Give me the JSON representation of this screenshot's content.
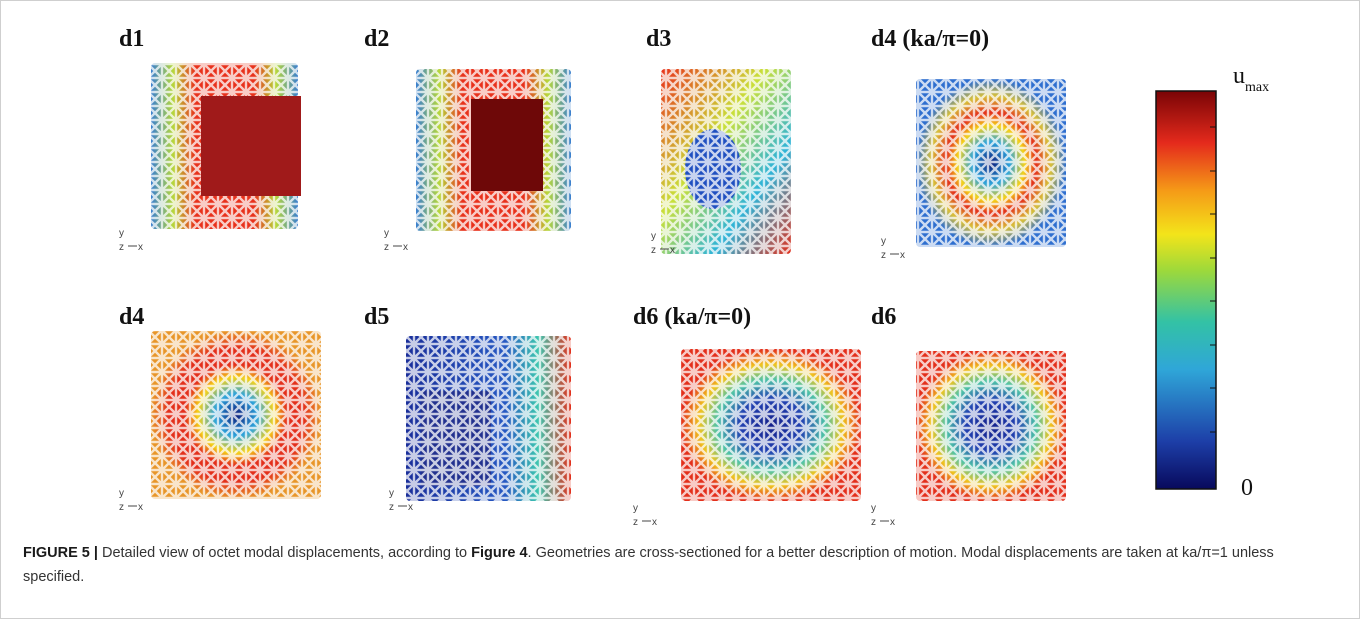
{
  "panels": [
    {
      "label": "d1"
    },
    {
      "label": "d2"
    },
    {
      "label": "d3"
    },
    {
      "label": "d4 (ka/π=0)"
    },
    {
      "label": "d4"
    },
    {
      "label": "d5"
    },
    {
      "label": "d6 (ka/π=0)"
    },
    {
      "label": "d6"
    }
  ],
  "axes": {
    "y": "y",
    "z": "z",
    "x": "x"
  },
  "colorbar": {
    "max_label": "u",
    "max_sub": "max",
    "min_label": "0"
  },
  "caption": {
    "label": "FIGURE 5 |",
    "text1": " Detailed view of octet modal displacements, according to ",
    "ref": "Figure 4",
    "text2": ". Geometries are cross-sectioned for a better description of motion. Modal displacements are taken at ka/π=1 unless specified."
  }
}
